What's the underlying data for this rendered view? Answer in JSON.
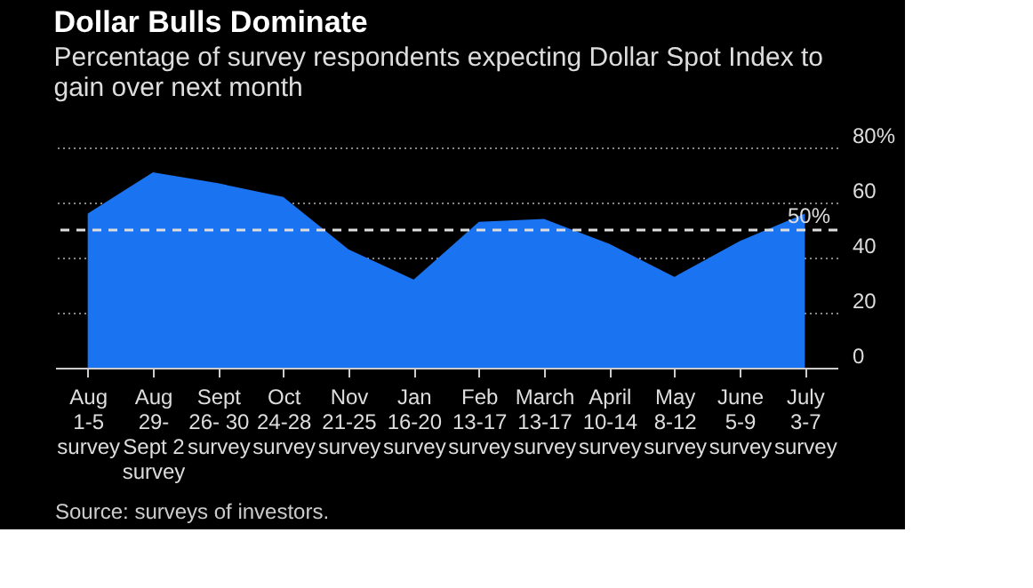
{
  "chart_data": {
    "type": "area",
    "title": "Dollar Bulls Dominate",
    "subtitle": "Percentage of survey respondents expecting Dollar Spot Index to gain over next month",
    "categories": [
      "Aug\n1-5\nsurvey",
      "Aug\n29-\nSept 2\nsurvey",
      "Sept\n26- 30\nsurvey",
      "Oct\n24-28\nsurvey",
      "Nov\n21-25\nsurvey",
      "Jan\n16-20\nsurvey",
      "Feb\n13-17\nsurvey",
      "March\n13-17\nsurvey",
      "April\n10-14\nsurvey",
      "May\n8-12\nsurvey",
      "June\n5-9\nsurvey",
      "July\n3-7\nsurvey"
    ],
    "series": [
      {
        "color": "#1a73f0",
        "values": [
          56,
          71,
          67,
          62,
          43,
          32,
          53,
          54,
          45,
          33,
          46,
          56
        ]
      }
    ],
    "ylim": [
      0,
      80
    ],
    "yticks": [
      0,
      20,
      40,
      60,
      {
        "value": 80,
        "label": "80%"
      }
    ],
    "grid": "y",
    "ref_lines": [
      {
        "axis": "y",
        "value": 50,
        "label": "50%",
        "color": "#dddddd",
        "line_style": "dashed"
      }
    ],
    "annotations": [
      "Source: surveys of investors."
    ]
  }
}
